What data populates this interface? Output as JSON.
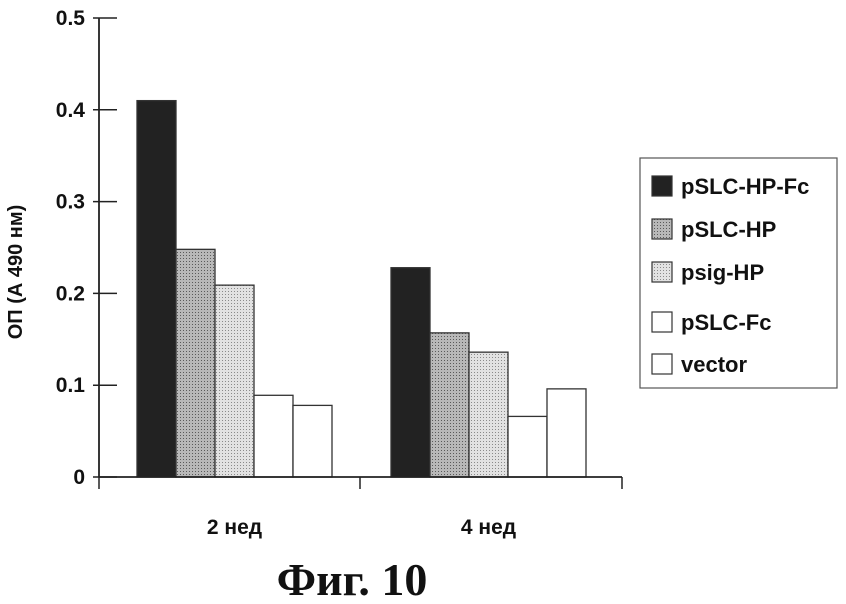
{
  "chart_data": {
    "type": "bar",
    "title": "",
    "xlabel": "",
    "ylabel": "ОП (А 490 нм)",
    "categories": [
      "2 нед",
      "4 нед"
    ],
    "ylim": [
      0,
      0.5
    ],
    "yticks": [
      "0",
      "0.1",
      "0.2",
      "0.3",
      "0.4",
      "0.5"
    ],
    "grid": false,
    "legend_position": "right",
    "series": [
      {
        "name": "pSLC-HP-Fc",
        "values": [
          0.41,
          0.228
        ],
        "color": "#222222"
      },
      {
        "name": "pSLC-HP",
        "values": [
          0.248,
          0.157
        ],
        "color": "#9a9a9a"
      },
      {
        "name": "psig-HP",
        "values": [
          0.209,
          0.136
        ],
        "color": "#cccccc"
      },
      {
        "name": "pSLC-Fc",
        "values": [
          0.089,
          0.066
        ],
        "color": "#ffffff"
      },
      {
        "name": "vector",
        "values": [
          0.078,
          0.096
        ],
        "color": "#ffffff"
      }
    ]
  },
  "caption": "Фиг. 10"
}
